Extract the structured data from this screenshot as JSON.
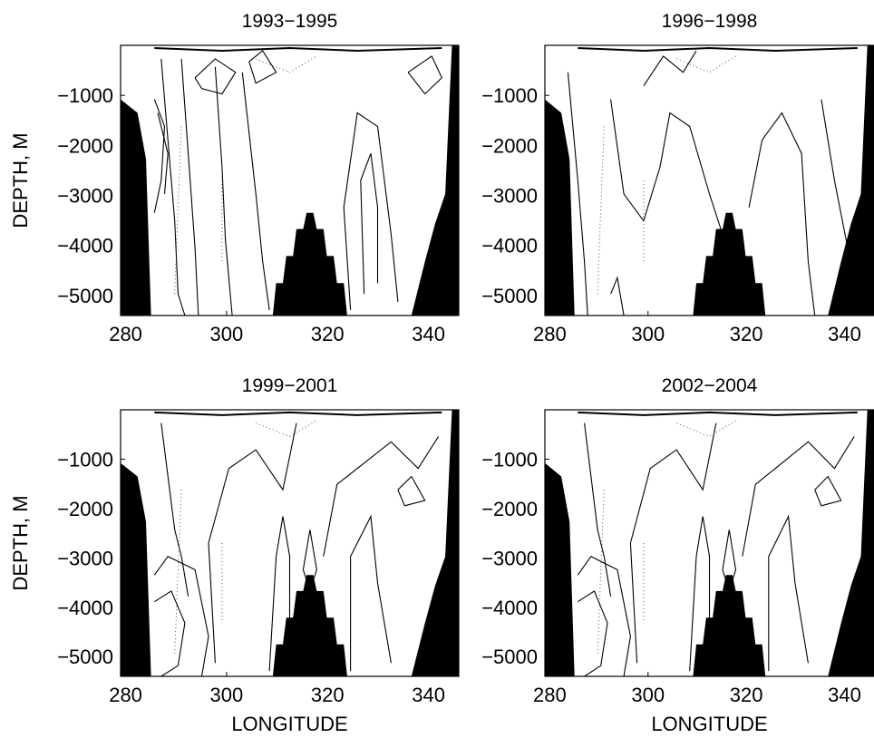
{
  "figure": {
    "ylabel": "DEPTH, M",
    "xlabel": "LONGITUDE"
  },
  "chart_data": [
    {
      "type": "contour",
      "title": "1993−1995",
      "xlabel": "",
      "ylabel": "DEPTH, M",
      "xlim": [
        279,
        346
      ],
      "ylim": [
        -5400,
        0
      ],
      "xticks": [
        280,
        300,
        320,
        340
      ],
      "yticks": [
        -1000,
        -2000,
        -3000,
        -4000,
        -5000
      ],
      "grid": false
    },
    {
      "type": "contour",
      "title": "1996−1998",
      "xlabel": "",
      "ylabel": "",
      "xlim": [
        279,
        346
      ],
      "ylim": [
        -5400,
        0
      ],
      "xticks": [
        280,
        300,
        320,
        340
      ],
      "yticks": [
        -1000,
        -2000,
        -3000,
        -4000,
        -5000
      ],
      "grid": false
    },
    {
      "type": "contour",
      "title": "1999−2001",
      "xlabel": "LONGITUDE",
      "ylabel": "DEPTH, M",
      "xlim": [
        279,
        346
      ],
      "ylim": [
        -5400,
        0
      ],
      "xticks": [
        280,
        300,
        320,
        340
      ],
      "yticks": [
        -1000,
        -2000,
        -3000,
        -4000,
        -5000
      ],
      "grid": false
    },
    {
      "type": "contour",
      "title": "2002−2004",
      "xlabel": "LONGITUDE",
      "ylabel": "",
      "xlim": [
        279,
        346
      ],
      "ylim": [
        -5400,
        0
      ],
      "xticks": [
        280,
        300,
        320,
        340
      ],
      "yticks": [
        -1000,
        -2000,
        -3000,
        -4000,
        -5000
      ],
      "grid": false
    }
  ]
}
